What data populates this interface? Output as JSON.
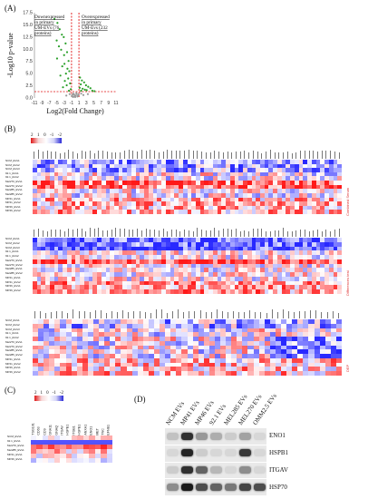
{
  "panelA": {
    "label": "(A)",
    "ylabel": "-Log10 p-value",
    "xlabel": "Log2(Fold Change)",
    "note_left": "Downexpressed in primary UM-EVs (76 proteins)",
    "note_right": "Overexpressed in primary UM-Evs (232 proteins)",
    "yticks": [
      "17.5",
      "15.0",
      "12.5",
      "10.0",
      "7.5",
      "5.0",
      "2.5",
      "0.0"
    ],
    "xticks": [
      "-11",
      "-9",
      "-7",
      "-5",
      "-3",
      "-1",
      "1",
      "3",
      "5",
      "7",
      "9",
      "11"
    ]
  },
  "chart_data": {
    "type": "scatter",
    "title": "",
    "xlabel": "Log2(Fold Change)",
    "ylabel": "-Log10 p-value",
    "xlim": [
      -11,
      11
    ],
    "ylim": [
      0,
      17.5
    ],
    "thresholds": {
      "fc_left": -1,
      "fc_right": 1,
      "p": 1.3
    },
    "series": [
      {
        "color": "#2aa02a",
        "points": [
          [
            -5.6,
            16.2
          ],
          [
            -4.8,
            15.4
          ],
          [
            -4.2,
            14.1
          ],
          [
            -3.6,
            13.0
          ],
          [
            -3.1,
            12.5
          ],
          [
            -5.0,
            11.8
          ],
          [
            -2.6,
            11.2
          ],
          [
            -4.4,
            10.6
          ],
          [
            -3.8,
            9.9
          ],
          [
            -2.2,
            9.4
          ],
          [
            -3.0,
            8.8
          ],
          [
            -4.9,
            8.1
          ],
          [
            -1.8,
            7.6
          ],
          [
            -2.9,
            7.0
          ],
          [
            -3.5,
            6.5
          ],
          [
            -2.1,
            6.0
          ],
          [
            -1.6,
            5.5
          ],
          [
            -2.5,
            5.0
          ],
          [
            -4.0,
            4.6
          ],
          [
            -1.9,
            4.0
          ],
          [
            -2.8,
            3.5
          ],
          [
            -1.4,
            3.0
          ],
          [
            -2.3,
            2.6
          ],
          [
            -3.3,
            2.2
          ],
          [
            -1.2,
            1.8
          ],
          [
            -1.7,
            1.5
          ],
          [
            1.3,
            4.2
          ],
          [
            1.8,
            3.6
          ],
          [
            2.4,
            3.2
          ],
          [
            1.5,
            2.8
          ],
          [
            2.9,
            2.6
          ],
          [
            3.5,
            2.3
          ],
          [
            1.2,
            2.1
          ],
          [
            2.0,
            1.9
          ],
          [
            4.1,
            2.0
          ],
          [
            2.6,
            1.7
          ],
          [
            3.1,
            1.6
          ],
          [
            1.6,
            1.5
          ],
          [
            4.6,
            1.5
          ],
          [
            5.2,
            1.4
          ]
        ]
      },
      {
        "color": "#9a9a9a",
        "points": [
          [
            -0.8,
            0.6
          ],
          [
            -0.5,
            0.9
          ],
          [
            -0.2,
            0.3
          ],
          [
            0.1,
            0.5
          ],
          [
            0.4,
            0.8
          ],
          [
            0.7,
            0.4
          ],
          [
            -0.6,
            0.2
          ],
          [
            0.3,
            1.0
          ],
          [
            0.9,
            0.7
          ],
          [
            -0.9,
            0.4
          ],
          [
            0.0,
            0.2
          ],
          [
            0.6,
            0.3
          ],
          [
            -0.3,
            0.7
          ],
          [
            2.2,
            0.6
          ],
          [
            3.4,
            0.8
          ],
          [
            -2.4,
            0.5
          ],
          [
            1.6,
            0.9
          ],
          [
            -1.5,
            0.8
          ]
        ]
      }
    ]
  },
  "panelB": {
    "label": "(B)",
    "scale": [
      "2",
      "1",
      "0",
      "-1",
      "-2"
    ],
    "rows": [
      "NCM_EVs1",
      "NCM_EVs2",
      "NCM_EVs3",
      "92.1_EVs1",
      "92.1_EVs2",
      "Mel270_EVs1",
      "Mel270_EVs2",
      "Mel285_EVs1",
      "Mel285_EVs2",
      "MP41_EVs1",
      "MP41_EVs2",
      "MP46_EVs1",
      "MP46_EVs2"
    ],
    "side1": "Combined Serum",
    "side2": "Differences test",
    "side3": "DEP"
  },
  "panelC": {
    "label": "(C)",
    "scale": [
      "2",
      "1",
      "0",
      "-1",
      "-2"
    ],
    "cols": [
      "TSG101",
      "CD63",
      "CD9",
      "GNA11",
      "GNAQ",
      "ITGAV",
      "HSPB1",
      "ITGB1",
      "HSPB1",
      "ANXA1",
      "ENO1",
      "MET",
      "TNC",
      "EFNB1"
    ],
    "rows": [
      "NCM_EVs1",
      "92.1_EVs1",
      "Mel270_EVs1",
      "Mel285_EVs1",
      "MP41_EVs1",
      "MP46_EVs1"
    ]
  },
  "panelD": {
    "label": "(D)",
    "lanes": [
      "NCM EVs",
      "MP41 EVs",
      "MP46 EVs",
      "92.1 EVs",
      "MEL285 EVs",
      "MEL270 EVs",
      "OMM2.5 EVs"
    ],
    "proteins": [
      "ENO1",
      "HSPB1",
      "ITGAV",
      "HSP70"
    ]
  }
}
